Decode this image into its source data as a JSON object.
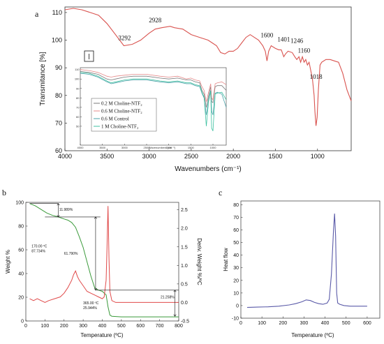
{
  "chart_data": [
    {
      "panel": "a",
      "type": "line",
      "xlabel": "Wavenumbers (cm⁻¹)",
      "ylabel": "Transmitance [%]",
      "xlim": [
        4000,
        600
      ],
      "ylim": [
        60,
        112
      ],
      "x_ticks": [
        4000,
        3500,
        3000,
        2500,
        2000,
        1500,
        1000
      ],
      "y_ticks": [
        60,
        70,
        80,
        90,
        100,
        110
      ],
      "annotations": [
        {
          "text": "3292",
          "x": 3292,
          "y": 100
        },
        {
          "text": "2928",
          "x": 2928,
          "y": 106.5
        },
        {
          "text": "1600",
          "x": 1600,
          "y": 101
        },
        {
          "text": "1401",
          "x": 1401,
          "y": 99.5
        },
        {
          "text": "1246",
          "x": 1246,
          "y": 99
        },
        {
          "text": "1160",
          "x": 1160,
          "y": 95.5
        },
        {
          "text": "1018",
          "x": 1018,
          "y": 86
        }
      ],
      "series": [
        {
          "color": "#d9534f",
          "x": [
            4000,
            3900,
            3800,
            3700,
            3650,
            3600,
            3500,
            3400,
            3300,
            3200,
            3100,
            3000,
            2928,
            2850,
            2750,
            2700,
            2600,
            2500,
            2400,
            2300,
            2250,
            2200,
            2150,
            2100,
            2050,
            2000,
            1950,
            1900,
            1850,
            1800,
            1750,
            1700,
            1650,
            1620,
            1600,
            1580,
            1550,
            1500,
            1460,
            1430,
            1401,
            1380,
            1350,
            1300,
            1270,
            1246,
            1220,
            1200,
            1180,
            1160,
            1140,
            1120,
            1100,
            1080,
            1060,
            1040,
            1030,
            1018,
            1005,
            990,
            970,
            950,
            900,
            850,
            800,
            750,
            700,
            650,
            600
          ],
          "y": [
            111,
            111.5,
            111,
            110,
            109.5,
            109,
            106,
            102,
            98,
            98.5,
            100,
            102.5,
            104,
            104.5,
            105,
            104.5,
            104,
            102,
            101,
            100,
            99,
            98,
            95.5,
            95,
            96,
            96,
            97,
            99,
            101,
            102,
            101,
            100,
            98,
            96,
            92.5,
            96,
            98,
            97,
            96.5,
            96.5,
            94,
            95,
            96,
            95.5,
            94,
            93,
            94,
            92,
            94,
            92,
            93,
            91,
            92,
            89,
            86,
            80,
            74,
            69,
            72,
            82,
            91,
            92,
            93,
            93,
            92.5,
            92,
            88,
            82,
            78
          ]
        }
      ],
      "inset": {
        "xlabel": "Wavenumbers (cm⁻¹)",
        "xlim": [
          4000,
          700
        ],
        "ylim": [
          30,
          112
        ],
        "x_ticks": [
          4000,
          3500,
          3000,
          2500,
          2000,
          1500,
          1000
        ],
        "y_ticks": [
          50,
          60,
          70,
          80,
          90,
          100,
          110
        ],
        "series": [
          {
            "name": "0.2 M Choline-NTF₂",
            "color": "#7a7a7a",
            "x": [
              4000,
              3800,
              3600,
              3400,
              3300,
              3200,
              3000,
              2800,
              2500,
              2200,
              2000,
              1800,
              1600,
              1500,
              1400,
              1300,
              1250,
              1200,
              1150,
              1100,
              1050,
              1030,
              1000,
              950,
              900,
              800,
              700
            ],
            "y": [
              108,
              107,
              105,
              100,
              99,
              100,
              102,
              103,
              103,
              101,
              100,
              101,
              99,
              99,
              97,
              96,
              88,
              84,
              70,
              82,
              92,
              76,
              75,
              92,
              93,
              93,
              88
            ]
          },
          {
            "name": "0.6 M Choline-NTF₂",
            "color": "#e58a8a",
            "x": [
              4000,
              3800,
              3600,
              3400,
              3300,
              3200,
              3000,
              2800,
              2500,
              2200,
              2000,
              1800,
              1600,
              1500,
              1400,
              1300,
              1250,
              1200,
              1150,
              1100,
              1050,
              1030,
              1000,
              950,
              900,
              800,
              700
            ],
            "y": [
              110,
              109,
              107,
              103,
              102,
              103,
              104,
              105,
              105,
              103,
              102,
              103,
              100,
              101,
              99,
              98,
              92,
              88,
              76,
              86,
              95,
              80,
              78,
              95,
              96,
              97,
              94
            ]
          },
          {
            "name": "0.6 M Control",
            "color": "#4aa0a8",
            "x": [
              4000,
              3800,
              3600,
              3400,
              3300,
              3200,
              3000,
              2800,
              2500,
              2200,
              2000,
              1800,
              1600,
              1500,
              1400,
              1300,
              1250,
              1200,
              1150,
              1100,
              1050,
              1030,
              1000,
              950,
              900,
              800,
              700
            ],
            "y": [
              106,
              105,
              102,
              97,
              95,
              96,
              98,
              99,
              99,
              97,
              96,
              97,
              95,
              95,
              93,
              92,
              85,
              80,
              62,
              78,
              88,
              66,
              62,
              85,
              86,
              84,
              70
            ]
          },
          {
            "name": "1 M Choline-NTF₂",
            "color": "#3cc0a0",
            "x": [
              4000,
              3800,
              3600,
              3400,
              3300,
              3200,
              3000,
              2800,
              2500,
              2200,
              2000,
              1800,
              1600,
              1500,
              1400,
              1300,
              1250,
              1200,
              1150,
              1100,
              1050,
              1030,
              1000,
              950,
              900,
              800,
              700
            ],
            "y": [
              107,
              106,
              103,
              98,
              96,
              97,
              99,
              100,
              100,
              98,
              97,
              98,
              96,
              96,
              94,
              93,
              86,
              81,
              50,
              76,
              87,
              48,
              45,
              84,
              85,
              86,
              78
            ]
          }
        ]
      }
    },
    {
      "panel": "b",
      "type": "line",
      "xlabel": "Temperature (ºC)",
      "ylabel": "Weight %",
      "ylabel_right": "Deriv. Weight %/ºC",
      "xlim": [
        0,
        800
      ],
      "ylim": [
        0,
        100
      ],
      "ylim_right": [
        -0.5,
        2.7
      ],
      "x_ticks": [
        0,
        100,
        200,
        300,
        400,
        500,
        600,
        700,
        800
      ],
      "y_ticks": [
        0,
        20,
        40,
        60,
        80,
        100
      ],
      "y_ticks_right": [
        -0.5,
        0.0,
        0.5,
        1.0,
        1.5,
        2.0,
        2.5
      ],
      "annotations": [
        {
          "text": "11.989%",
          "x": 175,
          "y": 93
        },
        {
          "text": "170.00 ºC",
          "x": 30,
          "y": 62
        },
        {
          "text": "87.734%",
          "x": 30,
          "y": 58
        },
        {
          "text": "61.790%",
          "x": 200,
          "y": 56
        },
        {
          "text": "365.00 ºC",
          "x": 300,
          "y": 14
        },
        {
          "text": "25.944%",
          "x": 300,
          "y": 10
        },
        {
          "text": "21.258%",
          "x": 705,
          "y": 19
        }
      ],
      "series": [
        {
          "name": "Weight",
          "axis": "left",
          "color": "#3a9a3a",
          "x": [
            20,
            50,
            80,
            110,
            140,
            170,
            200,
            220,
            240,
            260,
            280,
            300,
            320,
            340,
            360,
            380,
            400,
            420,
            430,
            440,
            450,
            500,
            600,
            700,
            800
          ],
          "y": [
            99,
            97,
            94,
            91,
            89,
            87.7,
            86,
            85,
            83,
            79,
            71,
            62,
            50,
            38,
            28,
            26,
            25,
            22,
            12,
            5,
            4,
            3.5,
            3.5,
            3.5,
            3.5
          ]
        },
        {
          "name": "Deriv. Weight",
          "axis": "right",
          "color": "#e04a4a",
          "x": [
            20,
            40,
            60,
            80,
            100,
            120,
            150,
            180,
            200,
            220,
            240,
            250,
            260,
            270,
            280,
            300,
            320,
            340,
            360,
            380,
            400,
            410,
            420,
            425,
            430,
            435,
            440,
            450,
            470,
            500,
            600,
            700,
            800
          ],
          "y": [
            0.1,
            0.05,
            0.1,
            0.05,
            0.0,
            0.05,
            0.1,
            0.15,
            0.25,
            0.4,
            0.6,
            0.75,
            0.85,
            0.7,
            0.6,
            0.45,
            0.3,
            0.25,
            0.2,
            0.15,
            0.1,
            0.15,
            0.6,
            1.5,
            2.6,
            1.2,
            0.3,
            0.05,
            0.0,
            0.0,
            0.0,
            0.0,
            0.0
          ]
        }
      ]
    },
    {
      "panel": "c",
      "type": "line",
      "xlabel": "Temperature (ºC)",
      "ylabel": "Heat flow",
      "xlim": [
        0,
        660
      ],
      "ylim": [
        -10,
        83
      ],
      "x_ticks": [
        0,
        100,
        200,
        300,
        400,
        500,
        600
      ],
      "y_ticks": [
        -10,
        0,
        10,
        20,
        30,
        40,
        50,
        60,
        70,
        80
      ],
      "series": [
        {
          "color": "#5a5aa8",
          "x": [
            30,
            80,
            130,
            180,
            230,
            260,
            290,
            310,
            330,
            350,
            370,
            390,
            410,
            420,
            430,
            440,
            445,
            450,
            455,
            460,
            470,
            490,
            520,
            560,
            600
          ],
          "y": [
            -1.5,
            -1.2,
            -1,
            -0.5,
            0.5,
            1.5,
            3,
            4.5,
            4,
            2.5,
            1.5,
            1,
            2,
            5,
            25,
            60,
            73,
            55,
            10,
            2,
            1,
            0,
            -0.5,
            -0.5,
            -0.5
          ]
        }
      ]
    }
  ]
}
